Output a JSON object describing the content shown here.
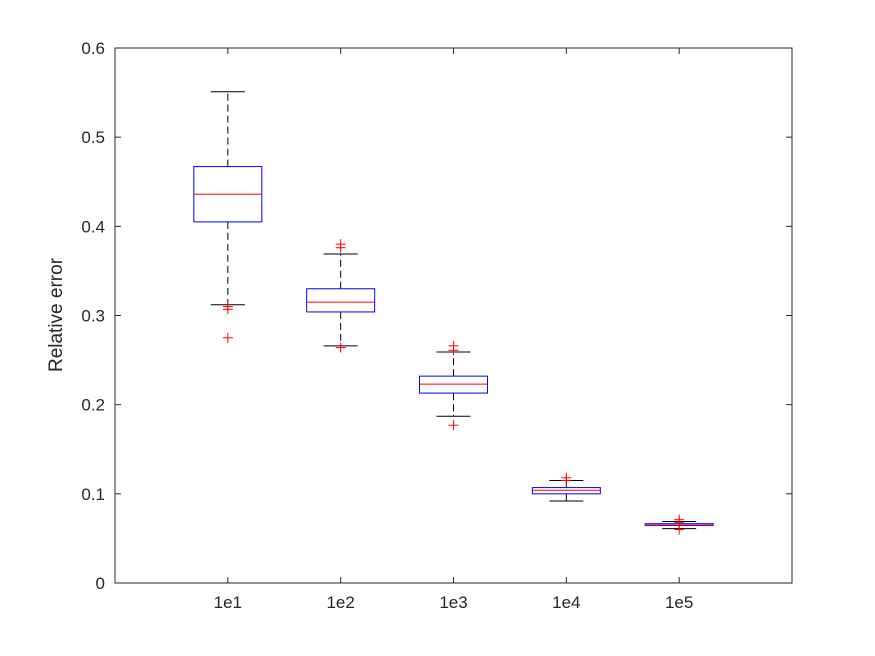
{
  "chart_data": {
    "type": "box",
    "title": "",
    "xlabel": "",
    "ylabel": "Relative error",
    "ylim": [
      0,
      0.6
    ],
    "yticks": [
      "0",
      "0.1",
      "0.2",
      "0.3",
      "0.4",
      "0.5",
      "0.6"
    ],
    "yticks_values": [
      0,
      0.1,
      0.2,
      0.3,
      0.4,
      0.5,
      0.6
    ],
    "categories": [
      "1e1",
      "1e2",
      "1e3",
      "1e4",
      "1e5"
    ],
    "boxes": [
      {
        "q1": 0.405,
        "median": 0.436,
        "q3": 0.467,
        "whisker_low": 0.312,
        "whisker_high": 0.551,
        "outliers": [
          0.31,
          0.307,
          0.275
        ]
      },
      {
        "q1": 0.304,
        "median": 0.315,
        "q3": 0.33,
        "whisker_low": 0.266,
        "whisker_high": 0.369,
        "outliers": [
          0.38,
          0.376,
          0.264
        ]
      },
      {
        "q1": 0.213,
        "median": 0.223,
        "q3": 0.232,
        "whisker_low": 0.187,
        "whisker_high": 0.259,
        "outliers": [
          0.266,
          0.261,
          0.177
        ]
      },
      {
        "q1": 0.1,
        "median": 0.104,
        "q3": 0.107,
        "whisker_low": 0.092,
        "whisker_high": 0.115,
        "outliers": [
          0.118,
          0.115
        ]
      },
      {
        "q1": 0.0645,
        "median": 0.065,
        "q3": 0.0665,
        "whisker_low": 0.061,
        "whisker_high": 0.069,
        "outliers": [
          0.071,
          0.068,
          0.06
        ]
      }
    ],
    "colors": {
      "box": "#0000ff",
      "median": "#ff0000",
      "whisker": "#000000",
      "outlier": "#ff0000",
      "axis": "#262626"
    },
    "grid": false,
    "legend": "none"
  }
}
